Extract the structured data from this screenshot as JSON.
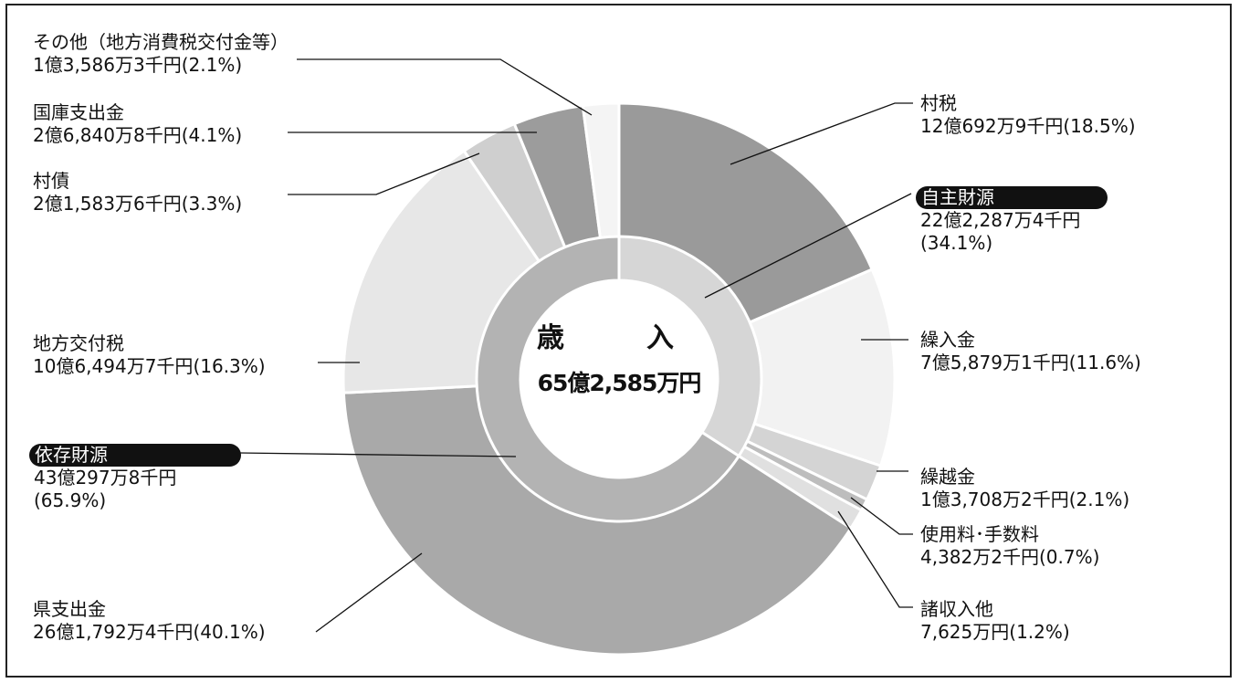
{
  "chart_data": {
    "type": "pie",
    "style": "donut (two rings)",
    "center": {
      "title": "歳　入",
      "total": "65億2,585万円"
    },
    "outer_ring": [
      {
        "name": "村税",
        "amount": "12億692万9千円",
        "percent": "(18.5%)",
        "value": 18.5,
        "color": "#9a9a9a"
      },
      {
        "name": "繰入金",
        "amount": "7億5,879万1千円",
        "percent": "(11.6%)",
        "value": 11.6,
        "color": "#f2f2f2"
      },
      {
        "name": "繰越金",
        "amount": "1億3,708万2千円",
        "percent": "(2.1%)",
        "value": 2.1,
        "color": "#d4d4d4"
      },
      {
        "name": "使用料･手数料",
        "amount": "4,382万2千円",
        "percent": "(0.7%)",
        "value": 0.7,
        "color": "#bdbdbd"
      },
      {
        "name": "諸収入他",
        "amount": "7,625万円",
        "percent": "(1.2%)",
        "value": 1.2,
        "color": "#e0e0e0"
      },
      {
        "name": "県支出金",
        "amount": "26億1,792万4千円",
        "percent": "(40.1%)",
        "value": 40.1,
        "color": "#a9a9a9"
      },
      {
        "name": "地方交付税",
        "amount": "10億6,494万7千円",
        "percent": "(16.3%)",
        "value": 16.3,
        "color": "#e7e7e7"
      },
      {
        "name": "村債",
        "amount": "2億1,583万6千円",
        "percent": "(3.3%)",
        "value": 3.3,
        "color": "#cfcfcf"
      },
      {
        "name": "国庫支出金",
        "amount": "2億6,840万8千円",
        "percent": "(4.1%)",
        "value": 4.1,
        "color": "#9c9c9c"
      },
      {
        "name": "その他（地方消費税交付金等）",
        "amount": "1億3,586万3千円",
        "percent": "(2.1%)",
        "value": 2.1,
        "color": "#f4f4f4"
      }
    ],
    "inner_ring": [
      {
        "name": "自主財源",
        "amount": "22億2,287万4千円",
        "percent": "(34.1%)",
        "value": 34.1,
        "color": "#d6d6d6"
      },
      {
        "name": "依存財源",
        "amount": "43億297万8千円",
        "percent": "(65.9%)",
        "value": 65.9,
        "color": "#b3b3b3"
      }
    ]
  }
}
